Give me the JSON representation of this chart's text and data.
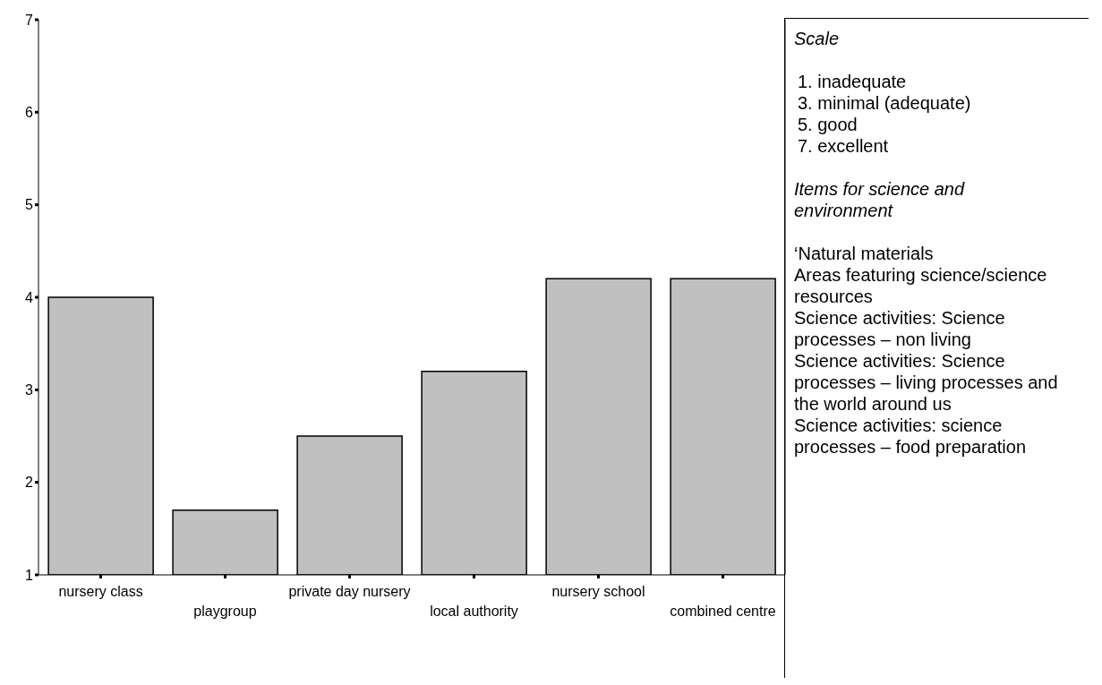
{
  "chart_data": {
    "type": "bar",
    "categories": [
      "nursery class",
      "playgroup",
      "private day nursery",
      "local authority",
      "nursery school",
      "combined centre"
    ],
    "values": [
      4.0,
      1.7,
      2.5,
      3.2,
      4.2,
      4.2
    ],
    "color": "#c0c0c0",
    "ylim": [
      1,
      7
    ],
    "yticks": [
      1,
      2,
      3,
      4,
      5,
      6,
      7
    ],
    "grid": false,
    "legend": false,
    "annotations": [
      "Scale",
      "1.  inadequate",
      "3.  minimal (adequate)",
      "5.  good",
      "7.  excellent",
      "Items for science and environment",
      "‘Natural materials",
      "Areas featuring science/science resources",
      "Science activities: Science processes – non living",
      "Science activities: Science processes – living processes and the world around us",
      "Science activities: science processes – food preparation"
    ]
  }
}
